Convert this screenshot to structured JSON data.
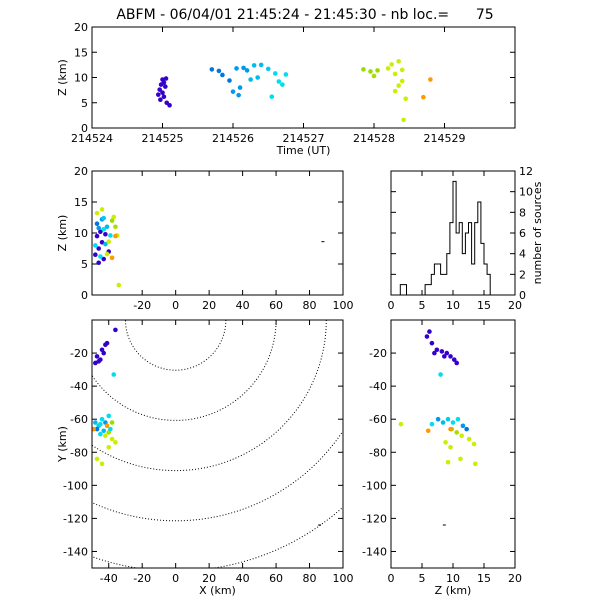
{
  "title": "ABFM - 06/04/01 21:45:24 - 21:45:30 - nb loc.=      75",
  "chart_data": [
    {
      "id": "time-height",
      "type": "scatter",
      "xlabel": "Time (UT)",
      "ylabel": "Z (km)",
      "xlim": [
        214524,
        214530
      ],
      "ylim": [
        0,
        20
      ],
      "xticks": [
        214524,
        214525,
        214526,
        214527,
        214528,
        214529
      ],
      "yticks": [
        0,
        5,
        10,
        15,
        20
      ],
      "points": [
        [
          214525.0,
          9.6,
          "#3300cc"
        ],
        [
          214525.05,
          9.8,
          "#3300cc"
        ],
        [
          214525.02,
          9.0,
          "#3300cc"
        ],
        [
          214524.98,
          8.6,
          "#3300cc"
        ],
        [
          214525.04,
          8.2,
          "#3300cc"
        ],
        [
          214524.96,
          7.6,
          "#3300cc"
        ],
        [
          214525.0,
          7.0,
          "#3300cc"
        ],
        [
          214524.94,
          6.6,
          "#3300cc"
        ],
        [
          214525.02,
          6.2,
          "#3300cc"
        ],
        [
          214524.97,
          5.6,
          "#3300cc"
        ],
        [
          214525.06,
          5.0,
          "#3300cc"
        ],
        [
          214525.1,
          4.5,
          "#3300cc"
        ],
        [
          214525.7,
          11.6,
          "#0077dd"
        ],
        [
          214525.8,
          11.3,
          "#0077dd"
        ],
        [
          214525.85,
          10.5,
          "#0077dd"
        ],
        [
          214525.95,
          9.4,
          "#0077dd"
        ],
        [
          214526.05,
          11.8,
          "#0099ee"
        ],
        [
          214526.15,
          11.9,
          "#0099ee"
        ],
        [
          214526.2,
          11.4,
          "#0099ee"
        ],
        [
          214526.1,
          8.0,
          "#0099ee"
        ],
        [
          214526.0,
          7.2,
          "#0099ee"
        ],
        [
          214526.08,
          6.5,
          "#0099ee"
        ],
        [
          214526.35,
          10.0,
          "#00bbee"
        ],
        [
          214526.3,
          12.4,
          "#00bbee"
        ],
        [
          214526.4,
          12.5,
          "#00bbee"
        ],
        [
          214526.5,
          11.7,
          "#00ccee"
        ],
        [
          214526.6,
          10.8,
          "#00ddee"
        ],
        [
          214526.65,
          9.2,
          "#00ddee"
        ],
        [
          214526.75,
          10.6,
          "#00ddee"
        ],
        [
          214526.7,
          8.6,
          "#00ddee"
        ],
        [
          214526.55,
          6.2,
          "#00ddee"
        ],
        [
          214526.25,
          9.6,
          "#00bbee"
        ],
        [
          214527.85,
          11.6,
          "#99dd00"
        ],
        [
          214527.95,
          11.2,
          "#99dd00"
        ],
        [
          214528.05,
          11.4,
          "#99dd00"
        ],
        [
          214528.0,
          10.3,
          "#aadd00"
        ],
        [
          214528.25,
          12.6,
          "#ccee00"
        ],
        [
          214528.35,
          13.2,
          "#ccee00"
        ],
        [
          214528.4,
          11.5,
          "#ccee00"
        ],
        [
          214528.3,
          10.7,
          "#ccee00"
        ],
        [
          214528.4,
          9.3,
          "#ccee00"
        ],
        [
          214528.35,
          8.4,
          "#ccee00"
        ],
        [
          214528.3,
          7.3,
          "#ccee00"
        ],
        [
          214528.45,
          5.8,
          "#ccee00"
        ],
        [
          214528.42,
          1.6,
          "#ccee00"
        ],
        [
          214528.2,
          11.8,
          "#ccee00"
        ],
        [
          214528.8,
          9.6,
          "#ff9900"
        ],
        [
          214528.7,
          6.1,
          "#ff9900"
        ]
      ]
    },
    {
      "id": "xz-plane",
      "type": "scatter",
      "xlabel": "",
      "ylabel": "Z (km)",
      "xlim": [
        -50,
        100
      ],
      "ylim": [
        0,
        20
      ],
      "xticks": [
        -20,
        0,
        20,
        40,
        60,
        80,
        100
      ],
      "yticks": [
        0,
        5,
        10,
        15,
        20
      ],
      "points": [
        [
          -47,
          9.5,
          "#3300cc"
        ],
        [
          -44,
          8.5,
          "#3300cc"
        ],
        [
          -46,
          7.5,
          "#3300cc"
        ],
        [
          -42,
          9.8,
          "#3300cc"
        ],
        [
          -48,
          6.5,
          "#3300cc"
        ],
        [
          -43,
          5.8,
          "#3300cc"
        ],
        [
          -45,
          10.2,
          "#3300cc"
        ],
        [
          -40,
          7.0,
          "#3300cc"
        ],
        [
          -47,
          11.5,
          "#0077dd"
        ],
        [
          -44,
          12.2,
          "#0099ee"
        ],
        [
          -46,
          10.8,
          "#0099ee"
        ],
        [
          -41,
          11.0,
          "#00bbee"
        ],
        [
          -43,
          12.4,
          "#00ccee"
        ],
        [
          -48,
          8.0,
          "#00ddee"
        ],
        [
          -45,
          6.2,
          "#00ddee"
        ],
        [
          -39,
          9.6,
          "#00ddee"
        ],
        [
          -42,
          8.2,
          "#00bbee"
        ],
        [
          -47,
          13.2,
          "#ccee00"
        ],
        [
          -44,
          13.8,
          "#ccee00"
        ],
        [
          -38,
          12.0,
          "#99dd00"
        ],
        [
          -36,
          11.0,
          "#aadd00"
        ],
        [
          -35,
          9.6,
          "#ccee00"
        ],
        [
          -40,
          8.6,
          "#ccee00"
        ],
        [
          -37,
          12.6,
          "#ccee00"
        ],
        [
          -41,
          6.6,
          "#ccee00"
        ],
        [
          -34,
          1.6,
          "#ccee00"
        ],
        [
          -38,
          6.0,
          "#ff9900"
        ],
        [
          -36,
          9.5,
          "#ff9900"
        ],
        [
          -46,
          5.2,
          "#3300cc"
        ],
        [
          -43,
          10.6,
          "#00ddee"
        ],
        [
          88,
          8.6,
          "#000000"
        ]
      ]
    },
    {
      "id": "histogram",
      "type": "bar",
      "ylabel": "number of sources",
      "xlim": [
        0,
        20
      ],
      "ylim": [
        0,
        12
      ],
      "xticks": [
        0,
        5,
        10,
        15,
        20
      ],
      "yticks": [
        0,
        2,
        4,
        6,
        8,
        10,
        12
      ],
      "bin_width": 0.5,
      "bins_start": 0,
      "counts": [
        0,
        0,
        0,
        1,
        1,
        0,
        0,
        0,
        0,
        0,
        0,
        1,
        1,
        2,
        3,
        3,
        2,
        2,
        4,
        7,
        11,
        6,
        7,
        4,
        6,
        7,
        3,
        7,
        9,
        5,
        3,
        2,
        0,
        0,
        0,
        0,
        0,
        0,
        0,
        0
      ]
    },
    {
      "id": "xy-plane",
      "type": "scatter",
      "xlabel": "X (km)",
      "ylabel": "Y (km)",
      "xlim": [
        -50,
        100
      ],
      "ylim": [
        -150,
        0
      ],
      "xticks": [
        -40,
        -20,
        0,
        20,
        40,
        60,
        80,
        100
      ],
      "yticks": [
        -140,
        -120,
        -100,
        -80,
        -60,
        -40,
        -20
      ],
      "range_rings_km": [
        30,
        60,
        90,
        120,
        150
      ],
      "points": [
        [
          -36,
          -6,
          "#3300cc"
        ],
        [
          -42,
          -15,
          "#3300cc"
        ],
        [
          -44,
          -18,
          "#3300cc"
        ],
        [
          -47,
          -22,
          "#3300cc"
        ],
        [
          -45,
          -24,
          "#3300cc"
        ],
        [
          -48,
          -26,
          "#3300cc"
        ],
        [
          -43,
          -20,
          "#3300cc"
        ],
        [
          -46,
          -25,
          "#3300cc"
        ],
        [
          -41,
          -14,
          "#3300cc"
        ],
        [
          -37,
          -33,
          "#00ddee"
        ],
        [
          -48,
          -62,
          "#00bbee"
        ],
        [
          -46,
          -64,
          "#00ccee"
        ],
        [
          -44,
          -60,
          "#00ddee"
        ],
        [
          -42,
          -62,
          "#0099ee"
        ],
        [
          -47,
          -66,
          "#0077dd"
        ],
        [
          -45,
          -63,
          "#00ddee"
        ],
        [
          -40,
          -58,
          "#00ddee"
        ],
        [
          -43,
          -67,
          "#00bbee"
        ],
        [
          -38,
          -62,
          "#99dd00"
        ],
        [
          -40,
          -68,
          "#aadd00"
        ],
        [
          -38,
          -72,
          "#ccee00"
        ],
        [
          -36,
          -74,
          "#ccee00"
        ],
        [
          -40,
          -77,
          "#ccee00"
        ],
        [
          -42,
          -70,
          "#ccee00"
        ],
        [
          -47,
          -84,
          "#ccee00"
        ],
        [
          -44,
          -87,
          "#ccee00"
        ],
        [
          -49,
          -66,
          "#ff9900"
        ],
        [
          -41,
          -64,
          "#ff9900"
        ],
        [
          -45,
          -69,
          "#00ddee"
        ],
        [
          -39,
          -66,
          "#00ddee"
        ],
        [
          86,
          -124,
          "#000000"
        ]
      ]
    },
    {
      "id": "zy-plane",
      "type": "scatter",
      "xlabel": "Z (km)",
      "ylabel": "",
      "xlim": [
        0,
        20
      ],
      "ylim": [
        -150,
        0
      ],
      "xticks": [
        0,
        5,
        10,
        15,
        20
      ],
      "yticks": [
        -140,
        -120,
        -100,
        -80,
        -60,
        -40,
        -20
      ],
      "points": [
        [
          6.2,
          -7,
          "#3300cc"
        ],
        [
          5.8,
          -10,
          "#3300cc"
        ],
        [
          6.6,
          -14,
          "#3300cc"
        ],
        [
          7.4,
          -18,
          "#3300cc"
        ],
        [
          8.2,
          -19,
          "#3300cc"
        ],
        [
          9.0,
          -20,
          "#3300cc"
        ],
        [
          9.6,
          -22,
          "#3300cc"
        ],
        [
          10.2,
          -24,
          "#3300cc"
        ],
        [
          10.6,
          -26,
          "#3300cc"
        ],
        [
          8.6,
          -22,
          "#3300cc"
        ],
        [
          7.0,
          -20,
          "#3300cc"
        ],
        [
          8.0,
          -33,
          "#00ddee"
        ],
        [
          7.6,
          -60,
          "#0099ee"
        ],
        [
          8.4,
          -62,
          "#00bbee"
        ],
        [
          9.2,
          -60,
          "#00ccee"
        ],
        [
          10.0,
          -62,
          "#00ddee"
        ],
        [
          10.8,
          -60,
          "#00ddee"
        ],
        [
          11.6,
          -64,
          "#0099ee"
        ],
        [
          12.2,
          -66,
          "#0077dd"
        ],
        [
          6.6,
          -63,
          "#00ddee"
        ],
        [
          9.8,
          -66,
          "#99dd00"
        ],
        [
          10.6,
          -68,
          "#aadd00"
        ],
        [
          11.4,
          -70,
          "#ccee00"
        ],
        [
          12.6,
          -72,
          "#ccee00"
        ],
        [
          13.4,
          -75,
          "#ccee00"
        ],
        [
          8.8,
          -74,
          "#ccee00"
        ],
        [
          9.6,
          -77,
          "#ccee00"
        ],
        [
          11.2,
          -84,
          "#ccee00"
        ],
        [
          13.6,
          -87,
          "#ccee00"
        ],
        [
          9.2,
          -86,
          "#ccee00"
        ],
        [
          1.6,
          -63,
          "#ccee00"
        ],
        [
          6.0,
          -67,
          "#ff9900"
        ],
        [
          9.6,
          -66,
          "#ff9900"
        ],
        [
          8.6,
          -124,
          "#000000"
        ]
      ]
    }
  ]
}
